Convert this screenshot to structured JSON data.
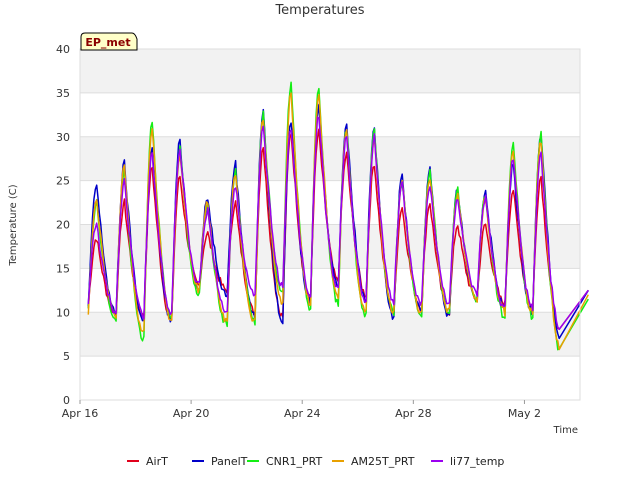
{
  "chart_data": {
    "type": "line",
    "title": "Temperatures",
    "xlabel": "Time",
    "ylabel": "Temperature (C)",
    "badge": "EP_met",
    "xlim": [
      0,
      18
    ],
    "ylim": [
      0,
      40
    ],
    "yticks": [
      0,
      5,
      10,
      15,
      20,
      25,
      30,
      35,
      40
    ],
    "xticks": [
      {
        "day": 0,
        "label": "Apr 16"
      },
      {
        "day": 4,
        "label": "Apr 20"
      },
      {
        "day": 8,
        "label": "Apr 24"
      },
      {
        "day": 12,
        "label": "Apr 28"
      },
      {
        "day": 16,
        "label": "May 2"
      }
    ],
    "day_start": 0.3,
    "grid": true,
    "legend_position": "bottom",
    "series": [
      {
        "name": "AirT",
        "color": "#e0001b",
        "min": [
          10.5,
          9.8,
          9.5,
          9.0,
          13.0,
          12.5,
          10.0,
          9.5,
          11.5,
          13.5,
          12.0,
          10.0,
          10.5,
          10.0,
          11.5,
          11.0,
          10.5,
          7.5,
          12.5
        ],
        "max": [
          18.5,
          22.5,
          26.5,
          25.5,
          19.0,
          22.5,
          29.0,
          30.5,
          30.5,
          28.0,
          27.0,
          22.0,
          22.5,
          20.0,
          20.0,
          24.0,
          25.5
        ]
      },
      {
        "name": "PanelT",
        "color": "#0000c8",
        "min": [
          10.5,
          9.8,
          9.0,
          9.0,
          12.5,
          12.0,
          9.5,
          9.0,
          11.0,
          13.0,
          11.5,
          9.5,
          10.0,
          9.5,
          11.0,
          10.5,
          10.0,
          7.0,
          12.5
        ],
        "max": [
          24.5,
          27.0,
          28.5,
          29.5,
          23.0,
          27.0,
          33.0,
          32.0,
          33.5,
          31.5,
          31.0,
          25.5,
          26.5,
          24.0,
          24.0,
          27.0,
          30.5
        ]
      },
      {
        "name": "CNR1_PRT",
        "color": "#14ee14",
        "min": [
          10.0,
          9.2,
          7.0,
          9.0,
          12.0,
          8.5,
          9.0,
          12.0,
          10.5,
          11.0,
          9.5,
          10.0,
          9.5,
          10.0,
          11.5,
          9.5,
          9.5,
          5.5,
          11.5
        ],
        "max": [
          22.5,
          26.0,
          32.0,
          28.5,
          22.0,
          26.0,
          32.5,
          36.0,
          35.5,
          31.0,
          30.5,
          25.0,
          26.0,
          24.0,
          23.5,
          29.5,
          30.5
        ]
      },
      {
        "name": "AM25T_PRT",
        "color": "#e8a000",
        "min": [
          10.0,
          9.5,
          7.5,
          9.0,
          12.5,
          9.0,
          9.0,
          11.0,
          11.0,
          12.0,
          10.0,
          10.0,
          10.0,
          10.0,
          11.5,
          10.0,
          10.0,
          6.0,
          12.0
        ],
        "max": [
          23.0,
          26.5,
          31.0,
          28.0,
          22.5,
          26.0,
          32.0,
          35.0,
          35.0,
          30.5,
          30.0,
          25.0,
          25.5,
          23.5,
          23.0,
          28.5,
          29.5
        ]
      },
      {
        "name": "li77_temp",
        "color": "#9b00f0",
        "min": [
          11.0,
          10.0,
          9.5,
          10.0,
          13.0,
          10.0,
          12.0,
          13.0,
          12.0,
          12.5,
          11.0,
          11.0,
          11.0,
          11.0,
          12.0,
          10.5,
          10.5,
          8.0,
          12.5
        ],
        "max": [
          20.0,
          25.0,
          28.0,
          28.5,
          21.5,
          24.5,
          31.0,
          31.0,
          32.5,
          30.0,
          30.0,
          24.5,
          24.5,
          23.0,
          23.0,
          27.5,
          28.0
        ]
      }
    ]
  }
}
